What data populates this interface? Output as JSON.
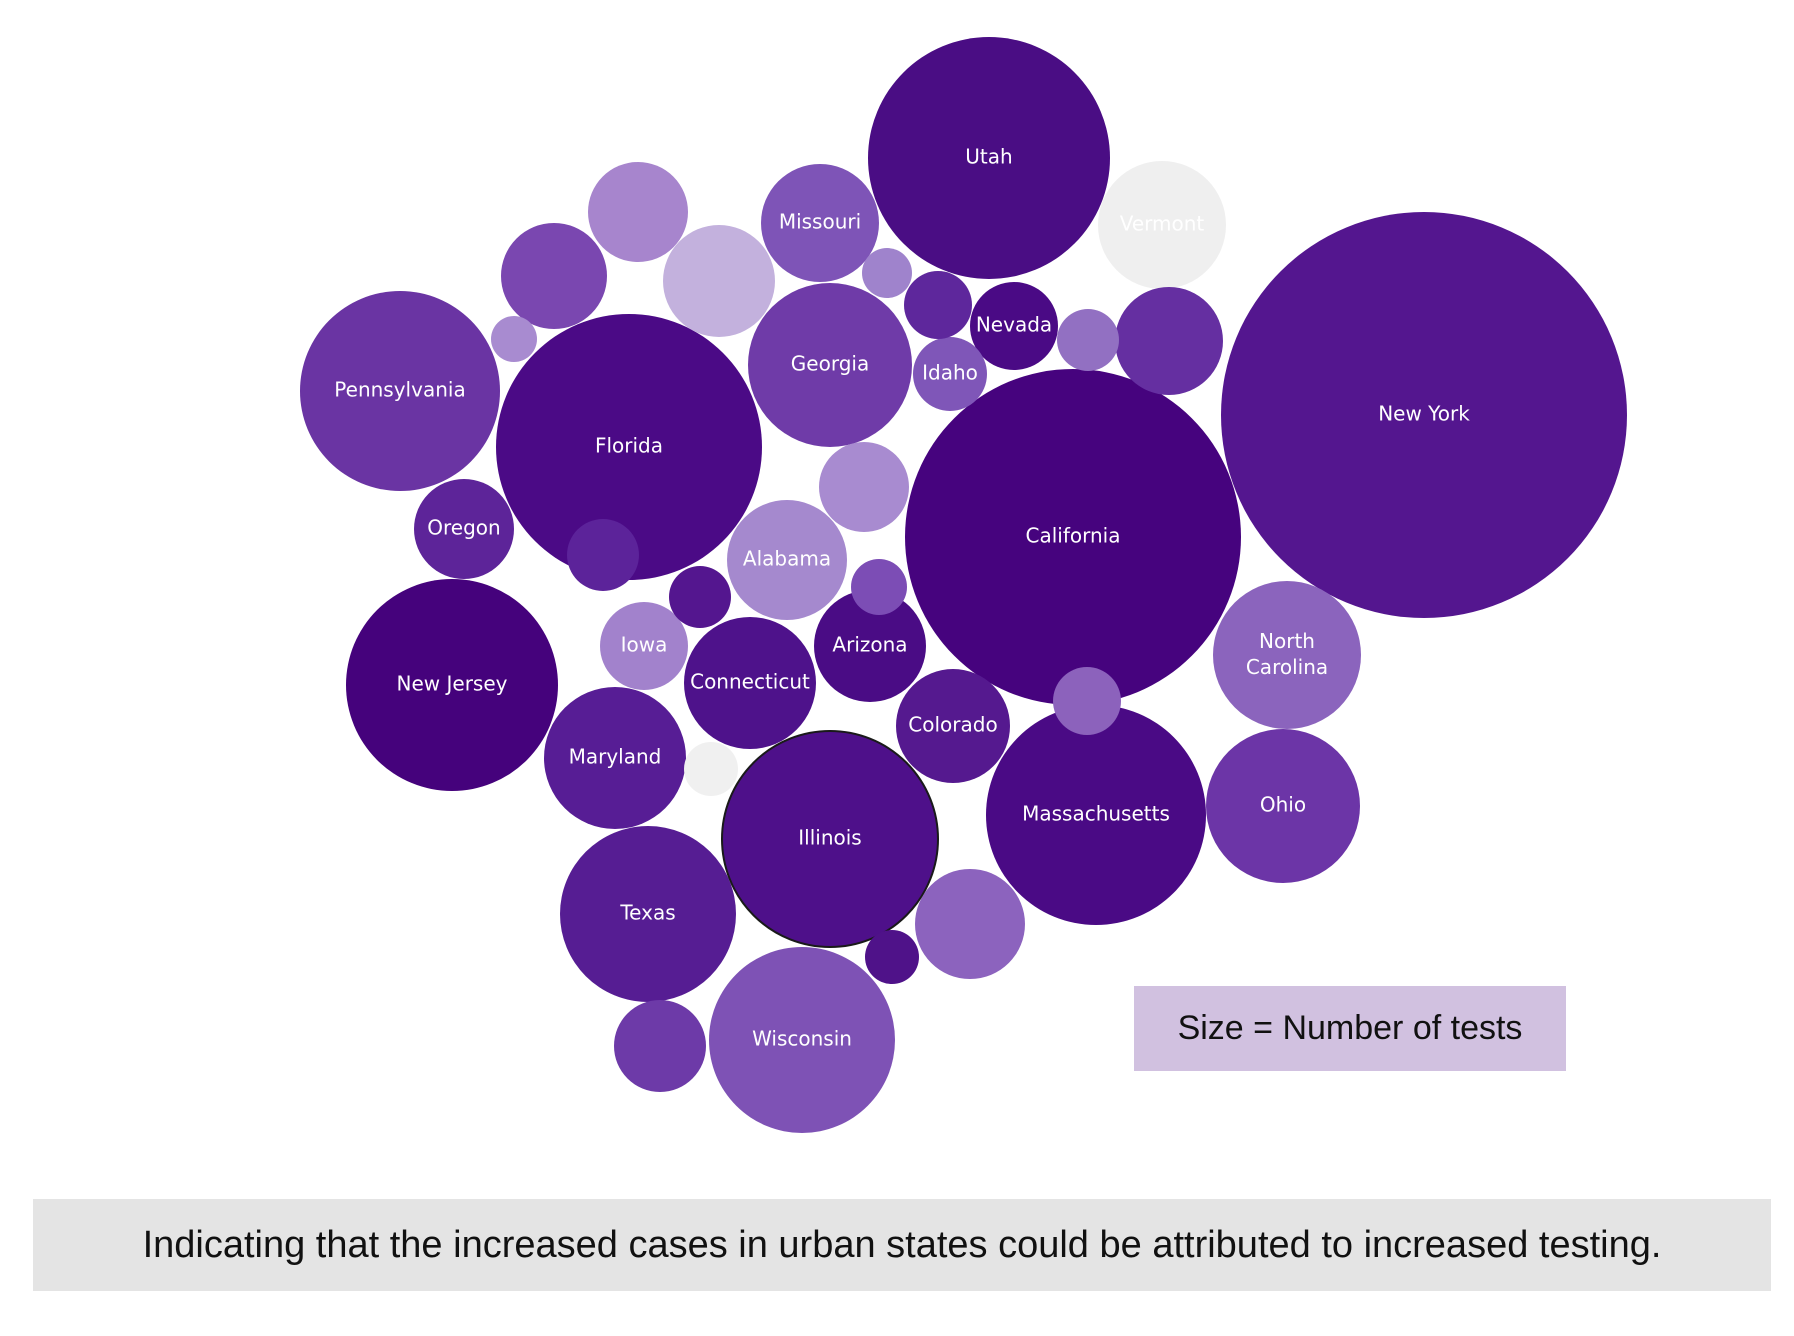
{
  "chart_data": {
    "type": "bubble",
    "size_encoding": "Number of tests",
    "bubbles": [
      {
        "label": "New York",
        "color": "#54168f"
      },
      {
        "label": "California",
        "color": "#46037e"
      },
      {
        "label": "Florida",
        "color": "#4b0a86"
      },
      {
        "label": "Utah",
        "color": "#4a0d84"
      },
      {
        "label": "Massachusetts",
        "color": "#4a0a85"
      },
      {
        "label": "New Jersey",
        "color": "#45027c"
      },
      {
        "label": "Illinois",
        "color": "#4e108a"
      },
      {
        "label": "Pennsylvania",
        "color": "#6a34a3"
      },
      {
        "label": "Wisconsin",
        "color": "#7e52b5"
      },
      {
        "label": "Texas",
        "color": "#561d93"
      },
      {
        "label": "Georgia",
        "color": "#6f3ba8"
      },
      {
        "label": "North\nCarolina",
        "color": "#8b64bd"
      },
      {
        "label": "Ohio",
        "color": "#6c35a7"
      },
      {
        "label": "Maryland",
        "color": "#571d95"
      },
      {
        "label": "Missouri",
        "color": "#7e54b7"
      },
      {
        "label": "Alabama",
        "color": "#a589ce"
      },
      {
        "label": "Connecticut",
        "color": "#4e128b"
      },
      {
        "label": "Colorado",
        "color": "#55198f"
      },
      {
        "label": "Arizona",
        "color": "#4a0c85"
      },
      {
        "label": "Vermont",
        "color": "#efefef",
        "label_color": "#333333"
      },
      {
        "label": "Oregon",
        "color": "#5d2499"
      },
      {
        "label": "Nevada",
        "color": "#4a0a85"
      },
      {
        "label": "Idaho",
        "color": "#7f56b8"
      },
      {
        "label": "Iowa",
        "color": "#a282cc"
      },
      {
        "label": "",
        "color": "#5c239a"
      },
      {
        "label": "",
        "color": "#7a47b0"
      },
      {
        "label": "",
        "color": "#a785cd"
      },
      {
        "label": "",
        "color": "#c3b1dd"
      },
      {
        "label": "",
        "color": "#8c63be"
      },
      {
        "label": "",
        "color": "#a88bd0"
      },
      {
        "label": "",
        "color": "#9270c2"
      },
      {
        "label": "",
        "color": "#652fa1"
      },
      {
        "label": "",
        "color": "#5e279c"
      },
      {
        "label": "",
        "color": "#9f83cc"
      },
      {
        "label": "",
        "color": "#8c62bc"
      },
      {
        "label": "",
        "color": "#6d3aa8"
      },
      {
        "label": "",
        "color": "#7c4db5"
      },
      {
        "label": "",
        "color": "#a88bd0"
      },
      {
        "label": "",
        "color": "#54168f"
      },
      {
        "label": "",
        "color": "#4f1289"
      },
      {
        "label": "",
        "color": "#451080"
      },
      {
        "label": "",
        "color": "#f0f0f0"
      },
      {
        "label": "",
        "color": "#7a56b6"
      },
      {
        "label": "",
        "color": "#4d1188"
      }
    ],
    "highlighted": "Illinois"
  },
  "legend": {
    "text": "Size = Number of tests"
  },
  "caption": {
    "text": "Indicating that the increased cases in urban states could be attributed to increased testing."
  }
}
